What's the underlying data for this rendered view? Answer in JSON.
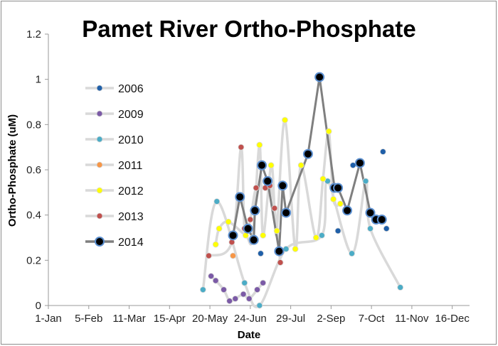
{
  "chart_data": {
    "type": "scatter",
    "title": "Pamet River Ortho-Phosphate",
    "xlabel": "Date",
    "ylabel": "Ortho-Phosphate  (uM)",
    "x_tick_labels": [
      "1-Jan",
      "5-Feb",
      "11-Mar",
      "15-Apr",
      "20-May",
      "24-Jun",
      "29-Jul",
      "2-Sep",
      "7-Oct",
      "11-Nov",
      "16-Dec"
    ],
    "y_tick_labels": [
      "0",
      "0.2",
      "0.4",
      "0.6",
      "0.8",
      "1",
      "1.2"
    ],
    "xlim_day_of_year": [
      0,
      365
    ],
    "ylim": [
      0,
      1.2
    ],
    "grid": false,
    "legend_position": "left-inside",
    "series": [
      {
        "name": "2006",
        "color": "#1f5fa8",
        "line": false,
        "x_day_of_year": [
          184,
          251,
          264,
          290,
          293
        ],
        "y": [
          0.23,
          0.33,
          0.62,
          0.68,
          0.34
        ]
      },
      {
        "name": "2009",
        "color": "#7b5aa6",
        "line": true,
        "x_day_of_year": [
          141,
          145,
          152,
          157,
          162,
          169,
          174,
          181,
          186
        ],
        "y": [
          0.13,
          0.11,
          0.07,
          0.02,
          0.03,
          0.05,
          0.03,
          0.07,
          0.1
        ]
      },
      {
        "name": "2010",
        "color": "#4bacc6",
        "line": true,
        "x_day_of_year": [
          134,
          146,
          170,
          183,
          206,
          237,
          242,
          263,
          275,
          279,
          305
        ],
        "y": [
          0.07,
          0.46,
          0.1,
          0.0,
          0.25,
          0.31,
          0.55,
          0.23,
          0.55,
          0.34,
          0.08
        ]
      },
      {
        "name": "2011",
        "color": "#f79646",
        "line": false,
        "x_day_of_year": [
          160
        ],
        "y": [
          0.22
        ]
      },
      {
        "name": "2012",
        "color": "#ffff00",
        "line": true,
        "x_day_of_year": [
          145,
          148,
          156,
          171,
          177,
          183,
          186,
          193,
          196,
          198,
          205,
          214,
          219,
          232,
          238,
          243,
          247,
          253
        ],
        "y": [
          0.27,
          0.34,
          0.37,
          0.31,
          0.3,
          0.71,
          0.31,
          0.62,
          0.43,
          0.33,
          0.82,
          0.25,
          0.62,
          0.3,
          0.56,
          0.77,
          0.47,
          0.45
        ]
      },
      {
        "name": "2013",
        "color": "#c0504d",
        "line": true,
        "x_day_of_year": [
          139,
          159,
          167,
          170,
          175,
          180,
          188,
          192,
          196,
          201
        ],
        "y": [
          0.22,
          0.28,
          0.7,
          0.34,
          0.38,
          0.52,
          0.52,
          0.53,
          0.43,
          0.19
        ]
      },
      {
        "name": "2014",
        "color": "#000000",
        "line": true,
        "x_day_of_year": [
          160,
          166,
          173,
          178,
          179,
          185,
          190,
          200,
          203,
          206,
          225,
          235,
          248,
          251,
          259,
          270,
          279,
          284,
          289
        ],
        "y": [
          0.31,
          0.48,
          0.34,
          0.29,
          0.42,
          0.62,
          0.55,
          0.24,
          0.53,
          0.41,
          0.67,
          1.01,
          0.52,
          0.52,
          0.42,
          0.63,
          0.41,
          0.38,
          0.38
        ]
      }
    ]
  }
}
